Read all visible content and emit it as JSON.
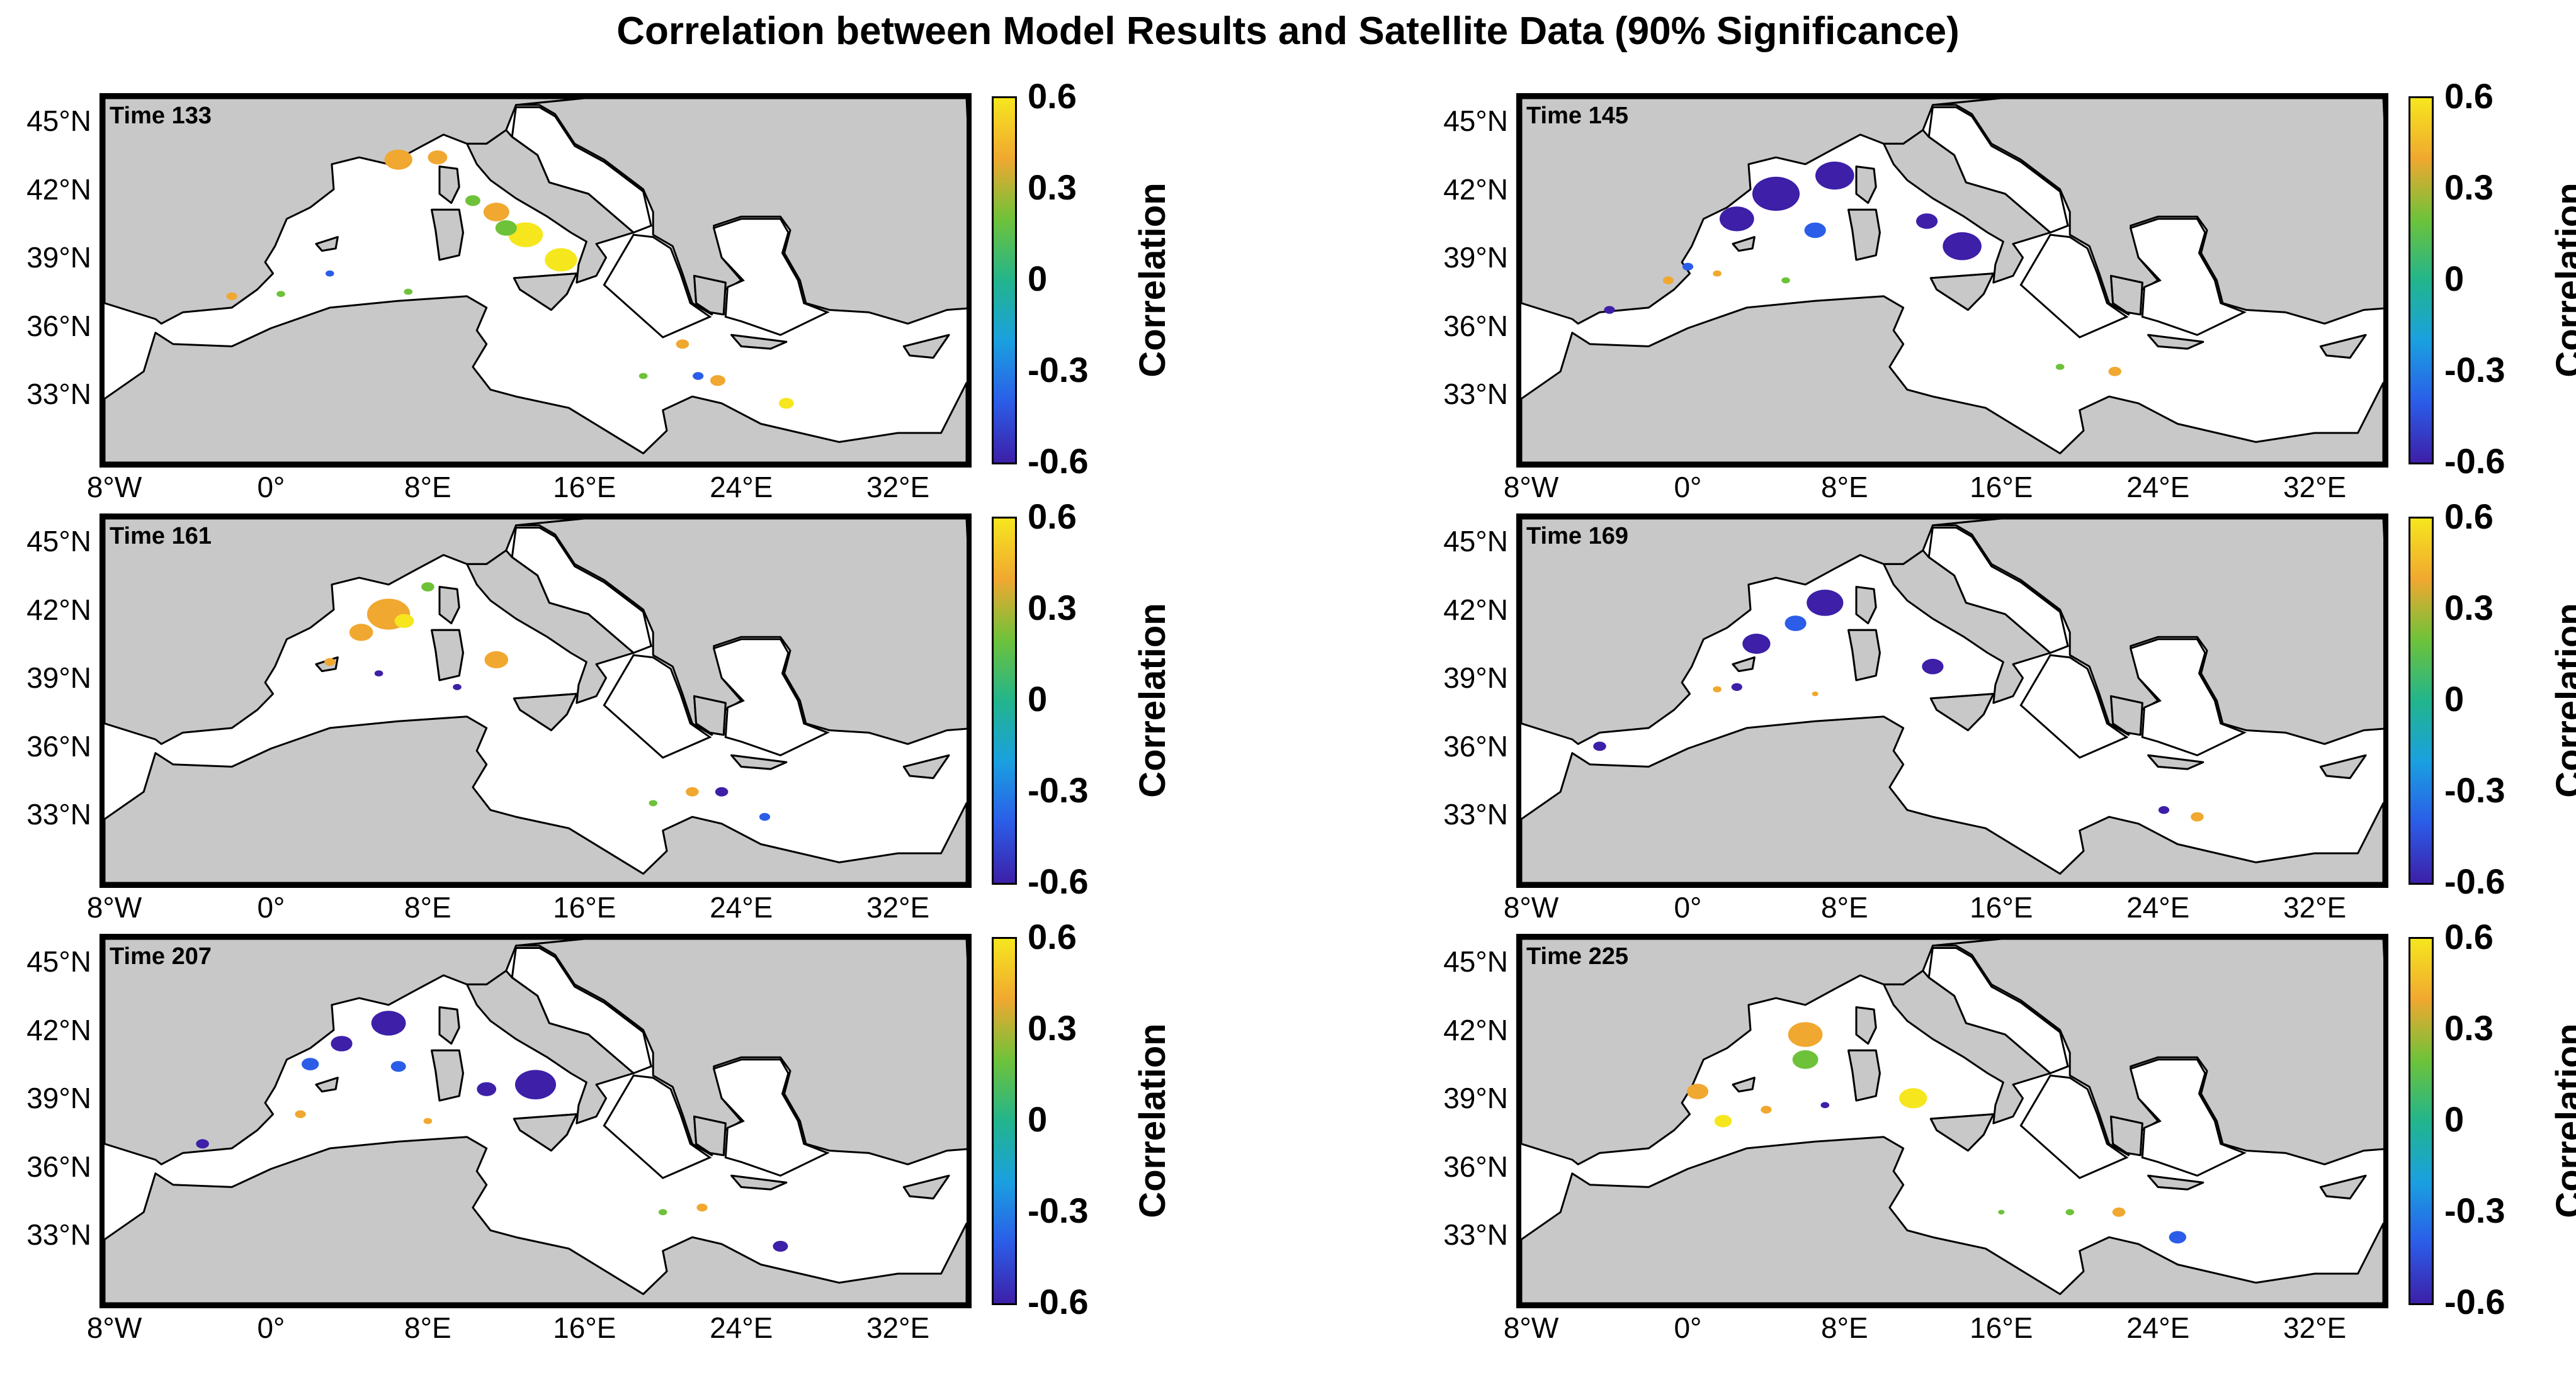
{
  "title": "Correlation between Model Results and Satellite Data (90% Significance)",
  "colors": {
    "land": "#c8c8c8",
    "sea": "#ffffff",
    "frame": "#000000"
  },
  "colorbar": {
    "label": "Correlation",
    "ticks": [
      "0.6",
      "0.3",
      "0",
      "-0.3",
      "-0.6"
    ],
    "range": [
      -0.6,
      0.6
    ],
    "colormap": [
      "#3d1fa8",
      "#2b5de8",
      "#1aa0e0",
      "#22b58c",
      "#6ec23a",
      "#f0a830",
      "#f6e61e"
    ]
  },
  "axes": {
    "lat_ticks": [
      "45°N",
      "42°N",
      "39°N",
      "36°N",
      "33°N"
    ],
    "lon_ticks": [
      "8°W",
      "0°",
      "8°E",
      "16°E",
      "24°E",
      "32°E"
    ]
  },
  "panels": [
    {
      "label": "Time 133",
      "blobs": [
        {
          "lon": 6.5,
          "lat": 43.3,
          "size": 1.3,
          "value": 0.45
        },
        {
          "lon": 8.5,
          "lat": 43.4,
          "size": 0.9,
          "value": 0.3
        },
        {
          "lon": 11.5,
          "lat": 41.0,
          "size": 1.2,
          "value": 0.45
        },
        {
          "lon": 13.0,
          "lat": 40.0,
          "size": 1.6,
          "value": 0.5
        },
        {
          "lon": 14.8,
          "lat": 38.9,
          "size": 1.5,
          "value": 0.55
        },
        {
          "lon": 12.0,
          "lat": 40.3,
          "size": 1.0,
          "value": 0.25
        },
        {
          "lon": 10.3,
          "lat": 41.5,
          "size": 0.7,
          "value": 0.25
        },
        {
          "lon": 21.0,
          "lat": 35.2,
          "size": 0.6,
          "value": 0.45
        },
        {
          "lon": 22.8,
          "lat": 33.6,
          "size": 0.7,
          "value": 0.45
        },
        {
          "lon": 26.3,
          "lat": 32.6,
          "size": 0.7,
          "value": 0.5
        },
        {
          "lon": 19.0,
          "lat": 33.8,
          "size": 0.4,
          "value": 0.25
        },
        {
          "lon": 21.8,
          "lat": 33.8,
          "size": 0.5,
          "value": -0.45
        },
        {
          "lon": 3.0,
          "lat": 38.3,
          "size": 0.4,
          "value": -0.45
        },
        {
          "lon": -2.0,
          "lat": 37.3,
          "size": 0.5,
          "value": 0.45
        },
        {
          "lon": 0.5,
          "lat": 37.4,
          "size": 0.4,
          "value": 0.25
        },
        {
          "lon": 7.0,
          "lat": 37.5,
          "size": 0.4,
          "value": 0.25
        }
      ]
    },
    {
      "label": "Time 145",
      "blobs": [
        {
          "lon": 4.5,
          "lat": 41.8,
          "size": 2.2,
          "value": -0.55
        },
        {
          "lon": 7.5,
          "lat": 42.6,
          "size": 1.8,
          "value": -0.55
        },
        {
          "lon": 2.5,
          "lat": 40.7,
          "size": 1.6,
          "value": -0.5
        },
        {
          "lon": 14.0,
          "lat": 39.5,
          "size": 1.8,
          "value": -0.55
        },
        {
          "lon": 12.2,
          "lat": 40.6,
          "size": 1.0,
          "value": -0.5
        },
        {
          "lon": 6.5,
          "lat": 40.2,
          "size": 1.0,
          "value": -0.35
        },
        {
          "lon": 0.0,
          "lat": 38.6,
          "size": 0.5,
          "value": -0.45
        },
        {
          "lon": -1.0,
          "lat": 38.0,
          "size": 0.5,
          "value": 0.45
        },
        {
          "lon": 1.5,
          "lat": 38.3,
          "size": 0.4,
          "value": 0.45
        },
        {
          "lon": -4.0,
          "lat": 36.7,
          "size": 0.5,
          "value": -0.5
        },
        {
          "lon": 21.8,
          "lat": 34.0,
          "size": 0.6,
          "value": 0.45
        },
        {
          "lon": 19.0,
          "lat": 34.2,
          "size": 0.4,
          "value": 0.25
        },
        {
          "lon": 5.0,
          "lat": 38.0,
          "size": 0.4,
          "value": 0.25
        }
      ]
    },
    {
      "label": "Time 161",
      "blobs": [
        {
          "lon": 6.0,
          "lat": 41.8,
          "size": 2.0,
          "value": 0.45
        },
        {
          "lon": 6.8,
          "lat": 41.5,
          "size": 0.9,
          "value": 0.6
        },
        {
          "lon": 4.6,
          "lat": 41.0,
          "size": 1.1,
          "value": 0.35
        },
        {
          "lon": 11.5,
          "lat": 39.8,
          "size": 1.1,
          "value": 0.45
        },
        {
          "lon": 8.0,
          "lat": 43.0,
          "size": 0.6,
          "value": 0.25
        },
        {
          "lon": 3.0,
          "lat": 39.7,
          "size": 0.5,
          "value": 0.45
        },
        {
          "lon": 5.5,
          "lat": 39.2,
          "size": 0.4,
          "value": -0.5
        },
        {
          "lon": 9.5,
          "lat": 38.6,
          "size": 0.4,
          "value": -0.5
        },
        {
          "lon": 21.5,
          "lat": 34.0,
          "size": 0.6,
          "value": 0.45
        },
        {
          "lon": 23.0,
          "lat": 34.0,
          "size": 0.6,
          "value": -0.5
        },
        {
          "lon": 25.2,
          "lat": 32.9,
          "size": 0.5,
          "value": -0.45
        },
        {
          "lon": 19.5,
          "lat": 33.5,
          "size": 0.4,
          "value": 0.25
        }
      ]
    },
    {
      "label": "Time 169",
      "blobs": [
        {
          "lon": 7.0,
          "lat": 42.3,
          "size": 1.7,
          "value": -0.55
        },
        {
          "lon": 3.5,
          "lat": 40.5,
          "size": 1.3,
          "value": -0.55
        },
        {
          "lon": 5.5,
          "lat": 41.4,
          "size": 1.0,
          "value": -0.35
        },
        {
          "lon": 12.5,
          "lat": 39.5,
          "size": 1.0,
          "value": -0.55
        },
        {
          "lon": 2.5,
          "lat": 38.6,
          "size": 0.5,
          "value": -0.5
        },
        {
          "lon": -4.5,
          "lat": 36.0,
          "size": 0.6,
          "value": -0.55
        },
        {
          "lon": 26.0,
          "lat": 32.9,
          "size": 0.6,
          "value": 0.45
        },
        {
          "lon": 24.3,
          "lat": 33.2,
          "size": 0.5,
          "value": -0.5
        },
        {
          "lon": 1.5,
          "lat": 38.5,
          "size": 0.4,
          "value": 0.45
        },
        {
          "lon": 6.5,
          "lat": 38.3,
          "size": 0.3,
          "value": 0.45
        }
      ]
    },
    {
      "label": "Time 207",
      "blobs": [
        {
          "lon": 6.0,
          "lat": 42.3,
          "size": 1.6,
          "value": -0.55
        },
        {
          "lon": 3.6,
          "lat": 41.4,
          "size": 1.0,
          "value": -0.5
        },
        {
          "lon": 2.0,
          "lat": 40.5,
          "size": 0.8,
          "value": -0.35
        },
        {
          "lon": 13.5,
          "lat": 39.6,
          "size": 1.9,
          "value": -0.55
        },
        {
          "lon": 11.0,
          "lat": 39.4,
          "size": 0.9,
          "value": -0.55
        },
        {
          "lon": 6.5,
          "lat": 40.4,
          "size": 0.7,
          "value": -0.35
        },
        {
          "lon": 1.5,
          "lat": 38.3,
          "size": 0.5,
          "value": 0.45
        },
        {
          "lon": -3.5,
          "lat": 37.0,
          "size": 0.6,
          "value": -0.55
        },
        {
          "lon": 26.0,
          "lat": 32.5,
          "size": 0.7,
          "value": -0.55
        },
        {
          "lon": 22.0,
          "lat": 34.2,
          "size": 0.5,
          "value": 0.45
        },
        {
          "lon": 8.0,
          "lat": 38.0,
          "size": 0.4,
          "value": 0.45
        },
        {
          "lon": 20.0,
          "lat": 34.0,
          "size": 0.4,
          "value": 0.25
        }
      ]
    },
    {
      "label": "Time 225",
      "blobs": [
        {
          "lon": 6.0,
          "lat": 41.8,
          "size": 1.6,
          "value": 0.45
        },
        {
          "lon": 6.0,
          "lat": 40.7,
          "size": 1.2,
          "value": 0.25
        },
        {
          "lon": 11.5,
          "lat": 39.0,
          "size": 1.3,
          "value": 0.5
        },
        {
          "lon": 0.5,
          "lat": 39.3,
          "size": 1.0,
          "value": 0.45
        },
        {
          "lon": 1.8,
          "lat": 38.0,
          "size": 0.8,
          "value": 0.5
        },
        {
          "lon": 4.0,
          "lat": 38.5,
          "size": 0.5,
          "value": 0.45
        },
        {
          "lon": 7.0,
          "lat": 38.7,
          "size": 0.4,
          "value": -0.5
        },
        {
          "lon": 22.0,
          "lat": 34.0,
          "size": 0.6,
          "value": 0.45
        },
        {
          "lon": 25.0,
          "lat": 32.9,
          "size": 0.8,
          "value": -0.45
        },
        {
          "lon": 16.0,
          "lat": 34.0,
          "size": 0.3,
          "value": 0.25
        },
        {
          "lon": 19.5,
          "lat": 34.0,
          "size": 0.4,
          "value": 0.25
        }
      ]
    }
  ]
}
